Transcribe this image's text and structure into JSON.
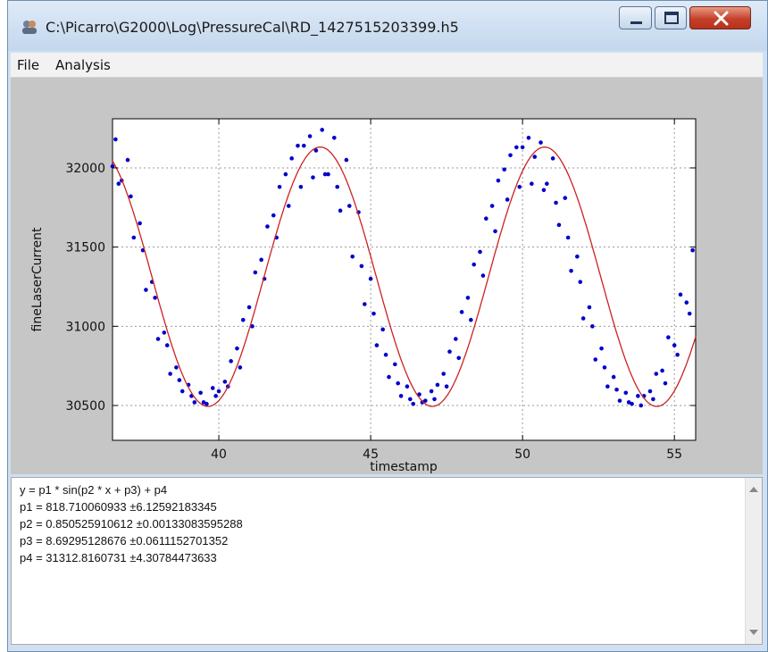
{
  "window": {
    "title": "C:\\Picarro\\G2000\\Log\\PressureCal\\RD_1427515203399.h5",
    "icons": [
      "app-icon",
      "minimize-icon",
      "maximize-icon",
      "close-icon"
    ]
  },
  "menu": {
    "items": [
      {
        "label": "File"
      },
      {
        "label": "Analysis"
      }
    ]
  },
  "chart_data": {
    "type": "scatter",
    "xlabel": "timestamp",
    "ylabel": "fineLaserCurrent",
    "xlim": [
      36.5,
      55.7
    ],
    "ylim": [
      30280,
      32310
    ],
    "xticks": [
      40,
      45,
      50,
      55
    ],
    "yticks": [
      30500,
      31000,
      31500,
      32000
    ],
    "grid": true,
    "colors": {
      "points": "#0000cc",
      "fit": "#cc2222"
    },
    "fit": {
      "function": "sin",
      "p1": 818.710060933,
      "p2": 0.850525910612,
      "p3": 8.69295128676,
      "p4": 31312.8160731
    },
    "series": [
      {
        "type": "scatter",
        "x": [
          36.5,
          36.8,
          37.2,
          37.6,
          38.0,
          38.4,
          38.8,
          39.2,
          39.6,
          40.0,
          40.4,
          40.8,
          41.2,
          41.6,
          42.0,
          42.4,
          42.8,
          43.2,
          43.6,
          44.0,
          44.4,
          44.8,
          45.2,
          45.6,
          46.0,
          46.4,
          46.8,
          47.2,
          47.6,
          48.0,
          48.4,
          48.8,
          49.2,
          49.6,
          50.0,
          50.4,
          50.8,
          51.2,
          51.6,
          52.0,
          52.4,
          52.8,
          53.2,
          53.6,
          54.0,
          54.4,
          54.8,
          55.2,
          55.6
        ],
        "y": [
          32010,
          31920,
          31560,
          31230,
          30920,
          30700,
          30590,
          30520,
          30510,
          30590,
          30780,
          31040,
          31340,
          31630,
          31880,
          32060,
          32140,
          32110,
          31960,
          31730,
          31440,
          31140,
          30880,
          30680,
          30560,
          30510,
          30530,
          30630,
          30840,
          31090,
          31390,
          31680,
          31920,
          32080,
          32130,
          32070,
          31900,
          31640,
          31350,
          31050,
          30790,
          30620,
          30530,
          30510,
          30560,
          30700,
          30930,
          31200,
          31480
        ]
      },
      {
        "type": "scatter",
        "x": [
          36.6,
          37.0,
          37.4,
          37.8,
          38.2,
          38.6,
          39.0,
          39.4,
          39.8,
          40.2,
          40.6,
          41.0,
          41.4,
          41.8,
          42.2,
          42.6,
          43.0,
          43.4,
          43.8,
          44.2,
          44.6,
          45.0,
          45.4,
          45.8,
          46.2,
          46.6,
          47.0,
          47.4,
          47.8,
          48.2,
          48.6,
          49.0,
          49.4,
          49.8,
          50.2,
          50.6,
          51.0,
          51.4,
          51.8,
          52.2,
          52.6,
          53.0,
          53.4,
          53.8,
          54.2,
          54.6,
          55.0,
          55.4
        ],
        "y": [
          32180,
          32050,
          31650,
          31280,
          30960,
          30740,
          30630,
          30580,
          30610,
          30650,
          30860,
          31120,
          31420,
          31700,
          31960,
          32140,
          32200,
          32240,
          32190,
          32050,
          31720,
          31300,
          30980,
          30760,
          30620,
          30570,
          30590,
          30700,
          30920,
          31180,
          31470,
          31760,
          31990,
          32130,
          32190,
          32160,
          32060,
          31810,
          31440,
          31120,
          30860,
          30680,
          30580,
          30560,
          30590,
          30720,
          30880,
          31150
        ]
      },
      {
        "type": "scatter",
        "x": [
          36.7,
          37.1,
          37.5,
          37.9,
          38.3,
          38.7,
          39.1,
          39.5,
          39.9,
          40.3,
          40.7,
          41.1,
          41.5,
          41.9,
          42.3,
          42.7,
          43.1,
          43.5,
          43.9,
          44.3,
          44.7,
          45.1,
          45.5,
          45.9,
          46.3,
          46.7,
          47.1,
          47.5,
          47.9,
          48.3,
          48.7,
          49.1,
          49.5,
          49.9,
          50.3,
          50.7,
          51.1,
          51.5,
          51.9,
          52.3,
          52.7,
          53.1,
          53.5,
          53.9,
          54.3,
          54.7,
          55.1,
          55.5
        ],
        "y": [
          31900,
          31820,
          31480,
          31180,
          30880,
          30660,
          30560,
          30520,
          30560,
          30620,
          30740,
          31000,
          31300,
          31560,
          31760,
          31880,
          31940,
          31960,
          31880,
          31760,
          31380,
          31080,
          30820,
          30640,
          30540,
          30520,
          30540,
          30620,
          30800,
          31040,
          31320,
          31600,
          31800,
          31880,
          31900,
          31860,
          31780,
          31560,
          31280,
          31000,
          30740,
          30600,
          30520,
          30500,
          30540,
          30640,
          30820,
          31080
        ]
      }
    ]
  },
  "output": {
    "lines": [
      "y = p1 * sin(p2 * x + p3) + p4",
      "p1 = 818.710060933 ±6.12592183345",
      "p2 = 0.850525910612 ±0.00133083595288",
      "p3 = 8.69295128676 ±0.0611152701352",
      "p4 = 31312.8160731 ±4.30784473633"
    ]
  }
}
